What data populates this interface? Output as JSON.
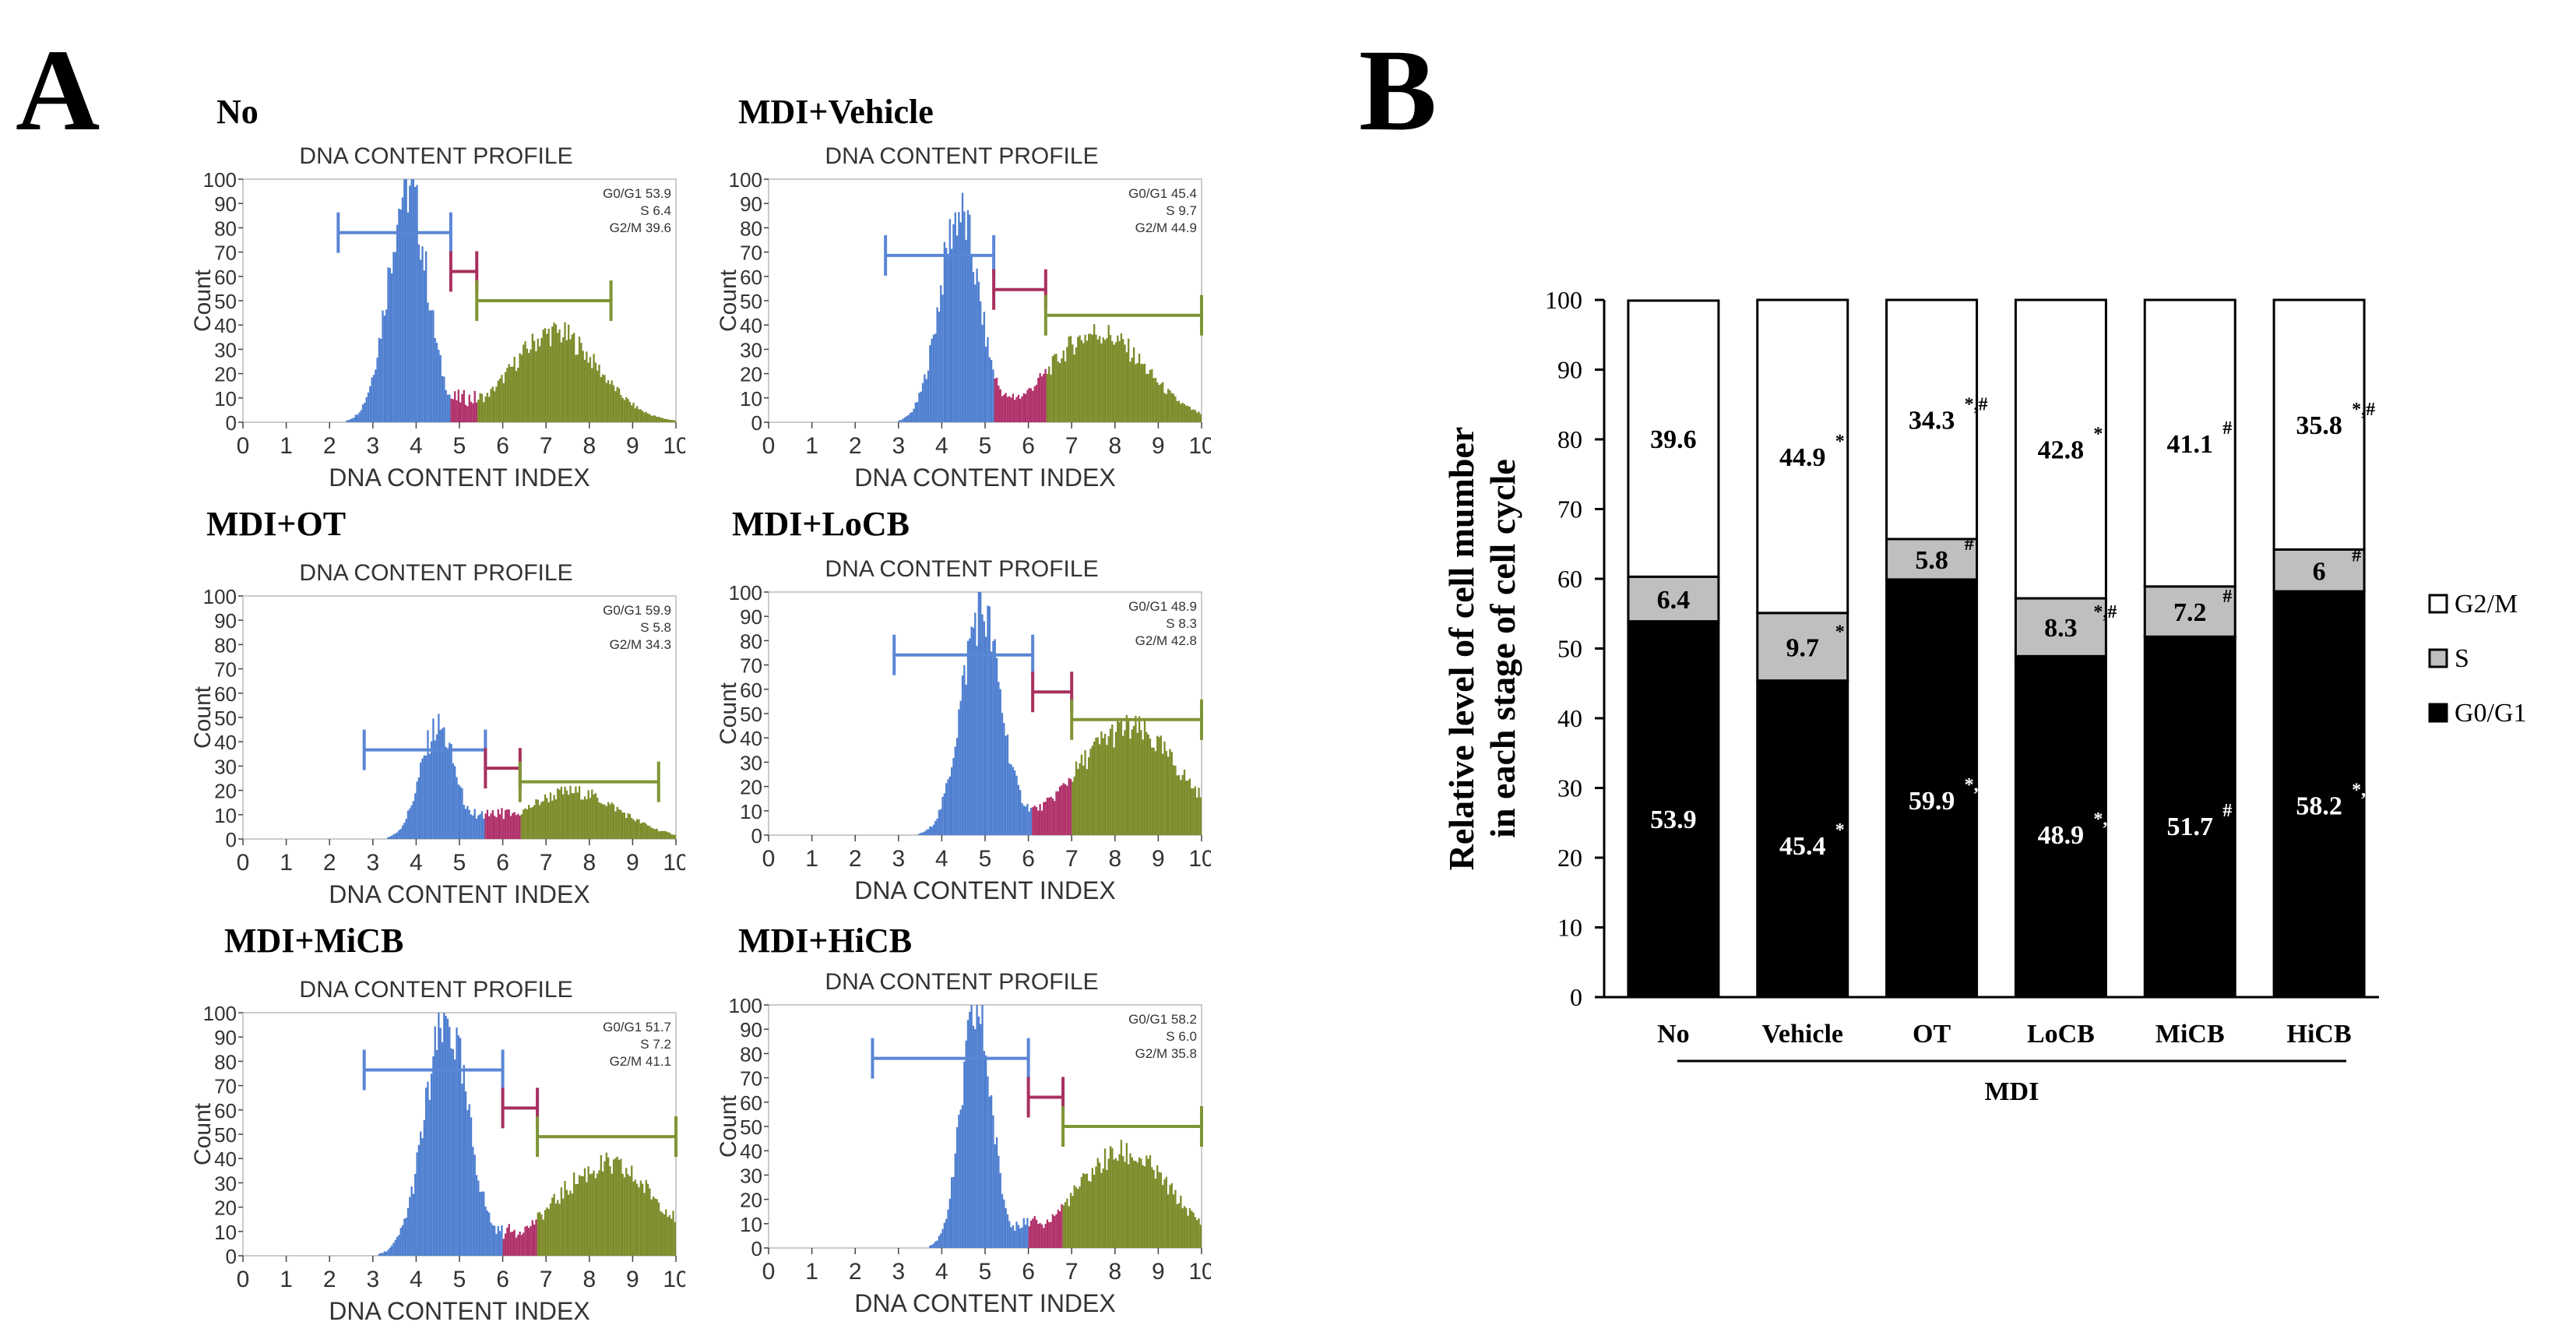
{
  "panel_a": {
    "letter": "A"
  },
  "panel_b": {
    "letter": "B"
  },
  "chart_data": [
    {
      "type": "histogram",
      "panel": "A",
      "name": "No",
      "title": "No",
      "plot_title": "DNA CONTENT PROFILE",
      "xlabel": "DNA CONTENT INDEX",
      "ylabel": "Count",
      "xlim": [
        0,
        10
      ],
      "ylim": [
        0,
        100
      ],
      "xticks": [
        "0",
        "1",
        "2",
        "3",
        "4",
        "5",
        "6",
        "7",
        "8",
        "9",
        "10"
      ],
      "yticks": [
        "0",
        "10",
        "20",
        "30",
        "40",
        "50",
        "60",
        "70",
        "80",
        "90",
        "100"
      ],
      "stats": [
        "G0/G1 53.9",
        "S 6.4",
        "G2/M 39.6"
      ],
      "g1_peak": {
        "center": 3.8,
        "height": 100,
        "width": 0.45
      },
      "g2_peak": {
        "center": 7.2,
        "height": 38,
        "width": 1.0
      },
      "gates": {
        "g0g1": [
          2.2,
          4.8
        ],
        "s": [
          4.8,
          5.4
        ],
        "g2m": [
          5.4,
          8.5
        ]
      }
    },
    {
      "type": "histogram",
      "panel": "A",
      "name": "MDI+Vehicle",
      "title": "MDI+Vehicle",
      "plot_title": "DNA CONTENT PROFILE",
      "xlabel": "DNA CONTENT INDEX",
      "ylabel": "Count",
      "xlim": [
        0,
        10
      ],
      "ylim": [
        0,
        100
      ],
      "xticks": [
        "0",
        "1",
        "2",
        "3",
        "4",
        "5",
        "6",
        "7",
        "8",
        "9",
        "10"
      ],
      "yticks": [
        "0",
        "10",
        "20",
        "30",
        "40",
        "50",
        "60",
        "70",
        "80",
        "90",
        "100"
      ],
      "stats": [
        "G0/G1 45.4",
        "S 9.7",
        "G2/M 44.9"
      ],
      "g1_peak": {
        "center": 4.4,
        "height": 88,
        "width": 0.45
      },
      "g2_peak": {
        "center": 7.6,
        "height": 38,
        "width": 1.1
      },
      "gates": {
        "g0g1": [
          2.7,
          5.2
        ],
        "s": [
          5.2,
          6.4
        ],
        "g2m": [
          6.4,
          10
        ]
      }
    },
    {
      "type": "histogram",
      "panel": "A",
      "name": "MDI+OT",
      "title": "MDI+OT",
      "plot_title": "DNA CONTENT PROFILE",
      "xlabel": "DNA CONTENT INDEX",
      "ylabel": "Count",
      "xlim": [
        0,
        10
      ],
      "ylim": [
        0,
        100
      ],
      "xticks": [
        "0",
        "1",
        "2",
        "3",
        "4",
        "5",
        "6",
        "7",
        "8",
        "9",
        "10"
      ],
      "yticks": [
        "0",
        "10",
        "20",
        "30",
        "40",
        "50",
        "60",
        "70",
        "80",
        "90",
        "100"
      ],
      "stats": [
        "G0/G1 59.9",
        "S 5.8",
        "G2/M 34.3"
      ],
      "g1_peak": {
        "center": 4.5,
        "height": 47,
        "width": 0.4
      },
      "g2_peak": {
        "center": 7.6,
        "height": 20,
        "width": 1.1
      },
      "gates": {
        "g0g1": [
          2.8,
          5.6
        ],
        "s": [
          5.6,
          6.4
        ],
        "g2m": [
          6.4,
          9.6
        ]
      }
    },
    {
      "type": "histogram",
      "panel": "A",
      "name": "MDI+LoCB",
      "title": "MDI+LoCB",
      "plot_title": "DNA CONTENT PROFILE",
      "xlabel": "DNA CONTENT INDEX",
      "ylabel": "Count",
      "xlim": [
        0,
        10
      ],
      "ylim": [
        0,
        100
      ],
      "xticks": [
        "0",
        "1",
        "2",
        "3",
        "4",
        "5",
        "6",
        "7",
        "8",
        "9",
        "10"
      ],
      "yticks": [
        "0",
        "10",
        "20",
        "30",
        "40",
        "50",
        "60",
        "70",
        "80",
        "90",
        "100"
      ],
      "stats": [
        "G0/G1 48.9",
        "S 8.3",
        "G2/M 42.8"
      ],
      "g1_peak": {
        "center": 4.9,
        "height": 95,
        "width": 0.45
      },
      "g2_peak": {
        "center": 8.3,
        "height": 45,
        "width": 1.2
      },
      "gates": {
        "g0g1": [
          2.9,
          6.1
        ],
        "s": [
          6.1,
          7.0
        ],
        "g2m": [
          7.0,
          10
        ]
      }
    },
    {
      "type": "histogram",
      "panel": "A",
      "name": "MDI+MiCB",
      "title": "MDI+MiCB",
      "plot_title": "DNA CONTENT PROFILE",
      "xlabel": "DNA CONTENT INDEX",
      "ylabel": "Count",
      "xlim": [
        0,
        10
      ],
      "ylim": [
        0,
        100
      ],
      "xticks": [
        "0",
        "1",
        "2",
        "3",
        "4",
        "5",
        "6",
        "7",
        "8",
        "9",
        "10"
      ],
      "yticks": [
        "0",
        "10",
        "20",
        "30",
        "40",
        "50",
        "60",
        "70",
        "80",
        "90",
        "100"
      ],
      "stats": [
        "G0/G1 51.7",
        "S 7.2",
        "G2/M 41.1"
      ],
      "g1_peak": {
        "center": 4.7,
        "height": 98,
        "width": 0.5
      },
      "g2_peak": {
        "center": 8.4,
        "height": 38,
        "width": 1.2
      },
      "gates": {
        "g0g1": [
          2.8,
          6.0
        ],
        "s": [
          6.0,
          6.8
        ],
        "g2m": [
          6.8,
          10
        ]
      }
    },
    {
      "type": "histogram",
      "panel": "A",
      "name": "MDI+HiCB",
      "title": "MDI+HiCB",
      "plot_title": "DNA CONTENT PROFILE",
      "xlabel": "DNA CONTENT INDEX",
      "ylabel": "Count",
      "xlim": [
        0,
        10
      ],
      "ylim": [
        0,
        100
      ],
      "xticks": [
        "0",
        "1",
        "2",
        "3",
        "4",
        "5",
        "6",
        "7",
        "8",
        "9",
        "10"
      ],
      "yticks": [
        "0",
        "10",
        "20",
        "30",
        "40",
        "50",
        "60",
        "70",
        "80",
        "90",
        "100"
      ],
      "stats": [
        "G0/G1 58.2",
        "S 6.0",
        "G2/M 35.8"
      ],
      "g1_peak": {
        "center": 4.8,
        "height": 100,
        "width": 0.35
      },
      "g2_peak": {
        "center": 8.2,
        "height": 40,
        "width": 1.1
      },
      "gates": {
        "g0g1": [
          2.4,
          6.0
        ],
        "s": [
          6.0,
          6.8
        ],
        "g2m": [
          6.8,
          10
        ]
      }
    },
    {
      "type": "stacked_bar",
      "panel": "B",
      "name": "cell-cycle-distribution",
      "ylabel_line1": "Relative level of cell mumber",
      "ylabel_line2": "in each stage of cell cycle",
      "ylim": [
        0,
        100
      ],
      "yticks": [
        "0",
        "10",
        "20",
        "30",
        "40",
        "50",
        "60",
        "70",
        "80",
        "90",
        "100"
      ],
      "categories": [
        "No",
        "Vehicle",
        "OT",
        "LoCB",
        "MiCB",
        "HiCB"
      ],
      "group_label": "MDI",
      "series": [
        {
          "name": "G0/G1",
          "color": "#000000",
          "values": [
            53.9,
            45.4,
            59.9,
            48.9,
            51.7,
            58.2
          ],
          "labels": [
            "53.9",
            "45.4",
            "59.9",
            "48.9",
            "51.7",
            "58.2"
          ],
          "marks": [
            "",
            "*",
            "*,#",
            "*,#",
            "#",
            "*,#"
          ]
        },
        {
          "name": "S",
          "color": "#bfbfbf",
          "values": [
            6.4,
            9.7,
            5.8,
            8.3,
            7.2,
            6.0
          ],
          "labels": [
            "6.4",
            "9.7",
            "5.8",
            "8.3",
            "7.2",
            "6"
          ],
          "marks": [
            "",
            "*",
            "#",
            "*,#",
            "#",
            "#"
          ]
        },
        {
          "name": "G2/M",
          "color": "#ffffff",
          "values": [
            39.6,
            44.9,
            34.3,
            42.8,
            41.1,
            35.8
          ],
          "labels": [
            "39.6",
            "44.9",
            "34.3",
            "42.8",
            "41.1",
            "35.8"
          ],
          "marks": [
            "",
            "*",
            "*,#",
            "*",
            "#",
            "*,#"
          ]
        }
      ],
      "legend": [
        "G2/M",
        "S",
        "G0/G1"
      ]
    }
  ]
}
